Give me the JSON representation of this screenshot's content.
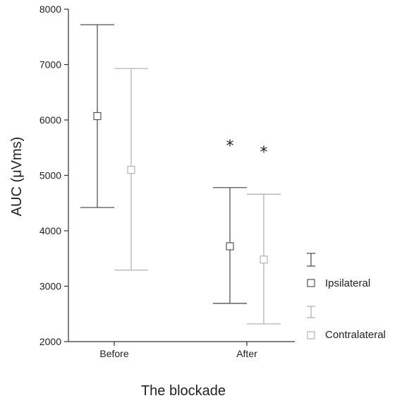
{
  "chart_data": {
    "type": "errorbar",
    "xlabel": "The blockade",
    "ylabel": "AUC (μVms)",
    "ylim": [
      2000,
      8000
    ],
    "yticks": [
      2000,
      3000,
      4000,
      5000,
      6000,
      7000,
      8000
    ],
    "categories": [
      "Before",
      "After"
    ],
    "series": [
      {
        "name": "Ipsilateral",
        "color": "#555555",
        "marker": "open-square",
        "values": [
          6070,
          3720
        ],
        "upper": [
          7720,
          4780
        ],
        "lower": [
          4420,
          2690
        ],
        "annotations": [
          "",
          "*"
        ]
      },
      {
        "name": "Contralateral",
        "color": "#b3b3b3",
        "marker": "open-square",
        "values": [
          5100,
          3480
        ],
        "upper": [
          6930,
          4660
        ],
        "lower": [
          3290,
          2320
        ],
        "annotations": [
          "",
          "*"
        ]
      }
    ],
    "legend_position": "right",
    "grid": false
  }
}
